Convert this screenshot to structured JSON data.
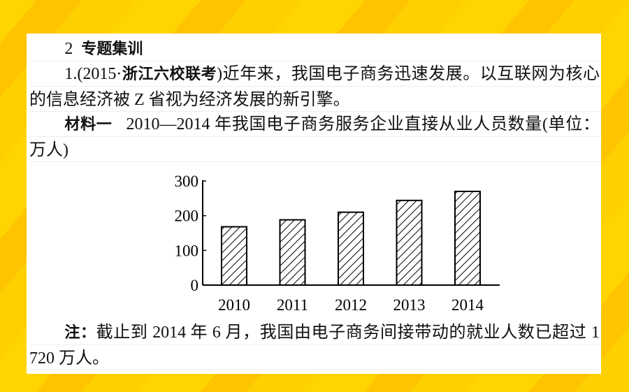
{
  "header": {
    "section": "2",
    "title": "专题集训"
  },
  "question": {
    "number": "1.(2015·",
    "source": "浙江六校联考",
    "text": ")近年来，我国电子商务迅速发展。以互联网为核心的信息经济被 Z 省视为经济发展的新引擎。"
  },
  "material": {
    "label": "材料一",
    "text": "2010—2014 年我国电子商务服务企业直接从业人员数量(单位：万人)"
  },
  "chart_data": {
    "type": "bar",
    "categories": [
      "2010",
      "2011",
      "2012",
      "2013",
      "2014"
    ],
    "values": [
      168,
      188,
      210,
      244,
      270
    ],
    "ylim": [
      0,
      300
    ],
    "yticks": [
      0,
      100,
      200,
      300
    ],
    "color": "#000000"
  },
  "note": {
    "label": "注：",
    "text": "截止到 2014 年 6 月，我国由电子商务间接带动的就业人数已超过 1 720 万人。"
  }
}
